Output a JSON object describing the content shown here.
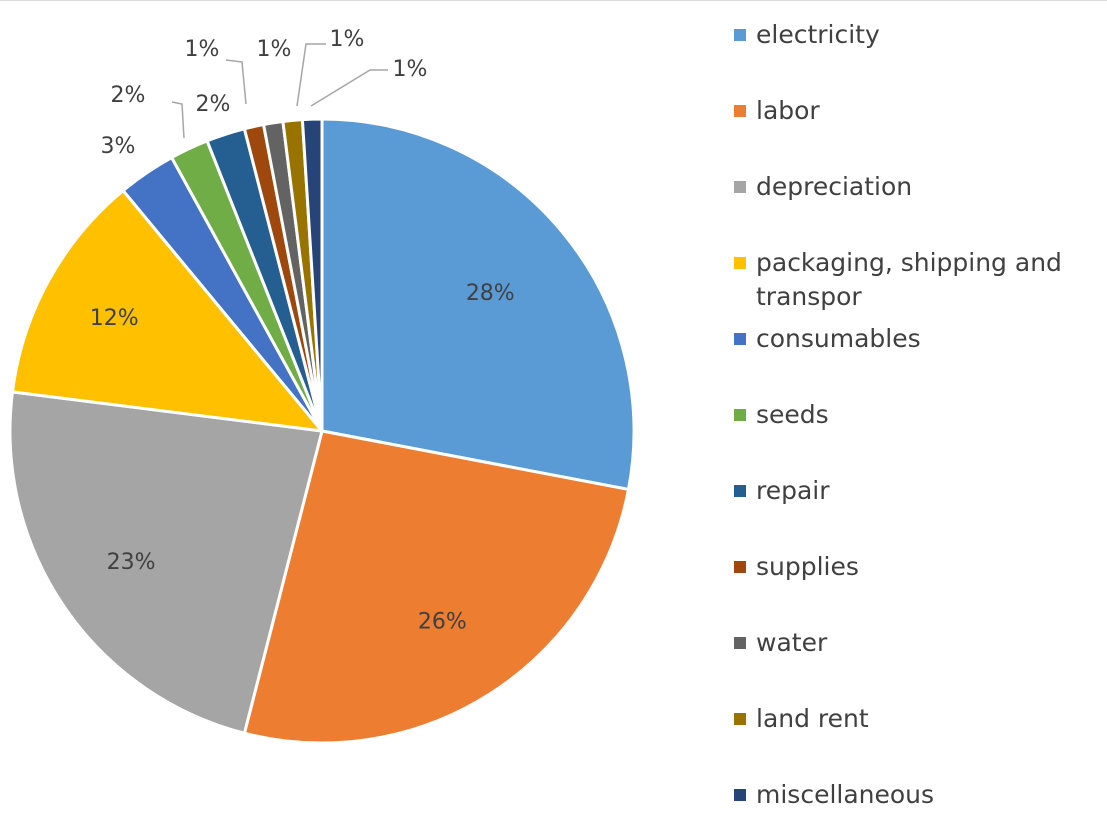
{
  "chart_data": {
    "type": "pie",
    "title": "",
    "legend_position": "right",
    "series": [
      {
        "slices": [
          {
            "label": "electricity",
            "value": 28,
            "display": "28%",
            "color": "#5b9bd5"
          },
          {
            "label": "labor",
            "value": 26,
            "display": "26%",
            "color": "#ed7d31"
          },
          {
            "label": "depreciation",
            "value": 23,
            "display": "23%",
            "color": "#a5a5a5"
          },
          {
            "label": "packaging, shipping and transpor",
            "value": 12,
            "display": "12%",
            "color": "#ffc000"
          },
          {
            "label": "consumables",
            "value": 3,
            "display": "3%",
            "color": "#4472c4"
          },
          {
            "label": "seeds",
            "value": 2,
            "display": "2%",
            "color": "#70ad47"
          },
          {
            "label": "repair",
            "value": 2,
            "display": "2%",
            "color": "#255e91"
          },
          {
            "label": "supplies",
            "value": 1,
            "display": "1%",
            "color": "#9e480e"
          },
          {
            "label": "water",
            "value": 1,
            "display": "1%",
            "color": "#636363"
          },
          {
            "label": "land rent",
            "value": 1,
            "display": "1%",
            "color": "#997300"
          },
          {
            "label": "miscellaneous",
            "value": 1,
            "display": "1%",
            "color": "#264478"
          }
        ]
      }
    ]
  }
}
